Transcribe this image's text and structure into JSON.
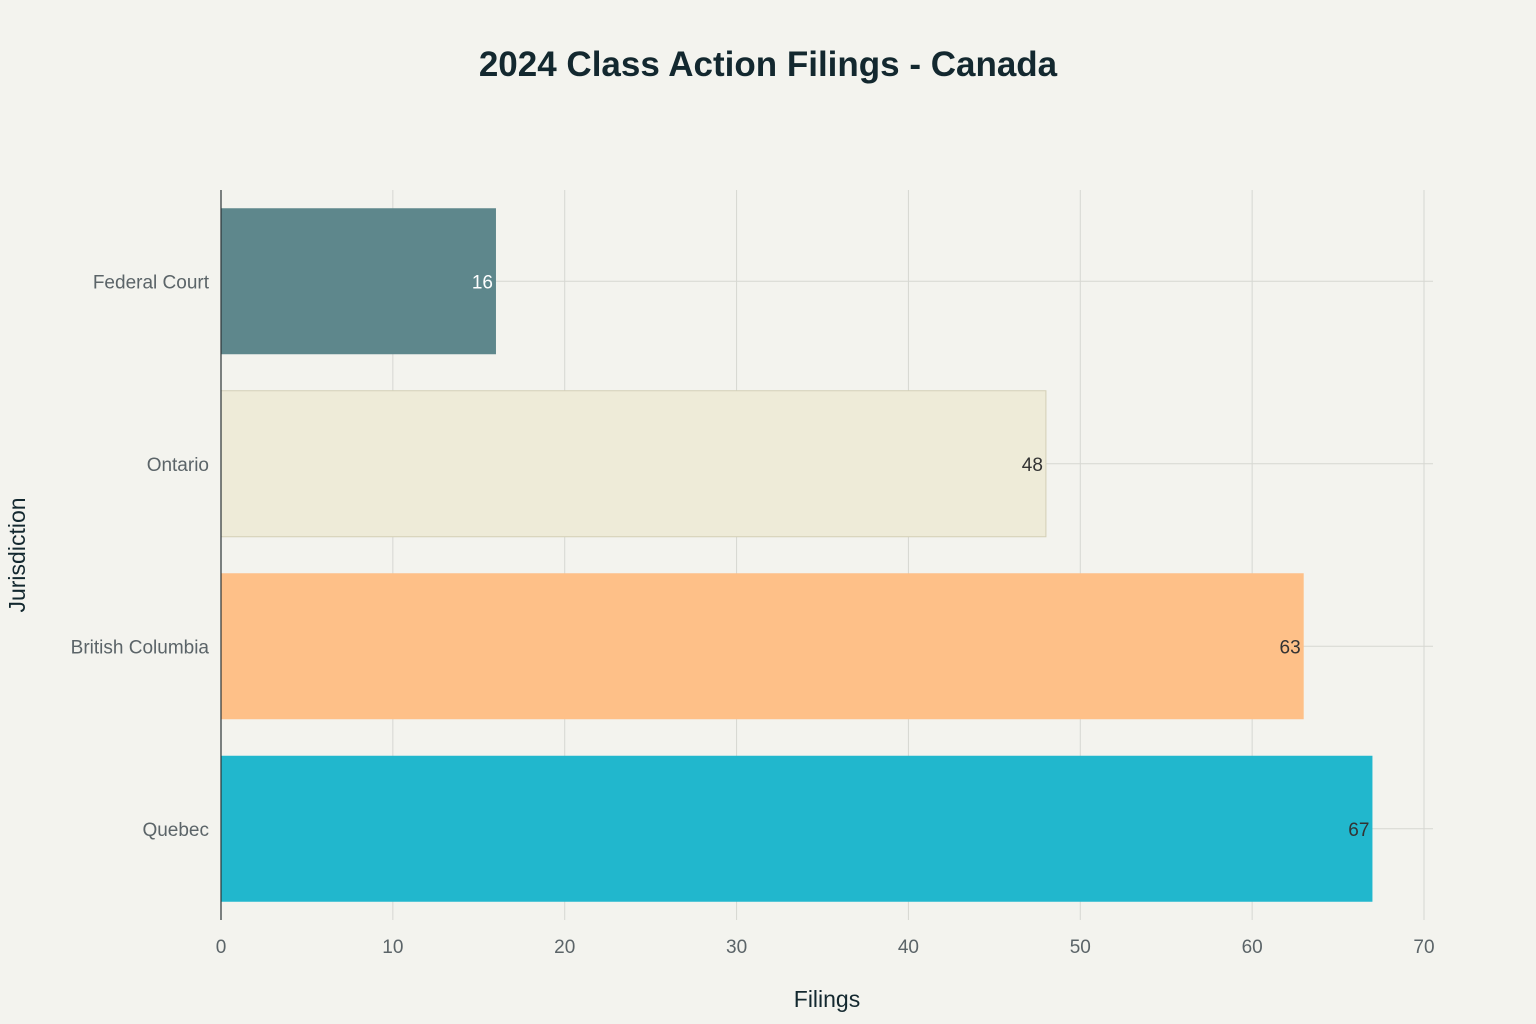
{
  "chart_data": {
    "type": "bar",
    "orientation": "horizontal",
    "title": "2024 Class Action Filings - Canada",
    "xlabel": "Filings",
    "ylabel": "Jurisdiction",
    "categories": [
      "Federal Court",
      "Ontario",
      "British Columbia",
      "Quebec"
    ],
    "values": [
      16,
      48,
      63,
      67
    ],
    "colors": [
      "#5e878c",
      "#eeebd8",
      "#fec088",
      "#21b7cd"
    ],
    "label_colors": [
      "#ffffff",
      "#333333",
      "#333333",
      "#333333"
    ],
    "xlim": [
      0,
      70
    ],
    "xticks": [
      0,
      10,
      20,
      30,
      40,
      50,
      60,
      70
    ],
    "grid": true,
    "legend": "none"
  }
}
